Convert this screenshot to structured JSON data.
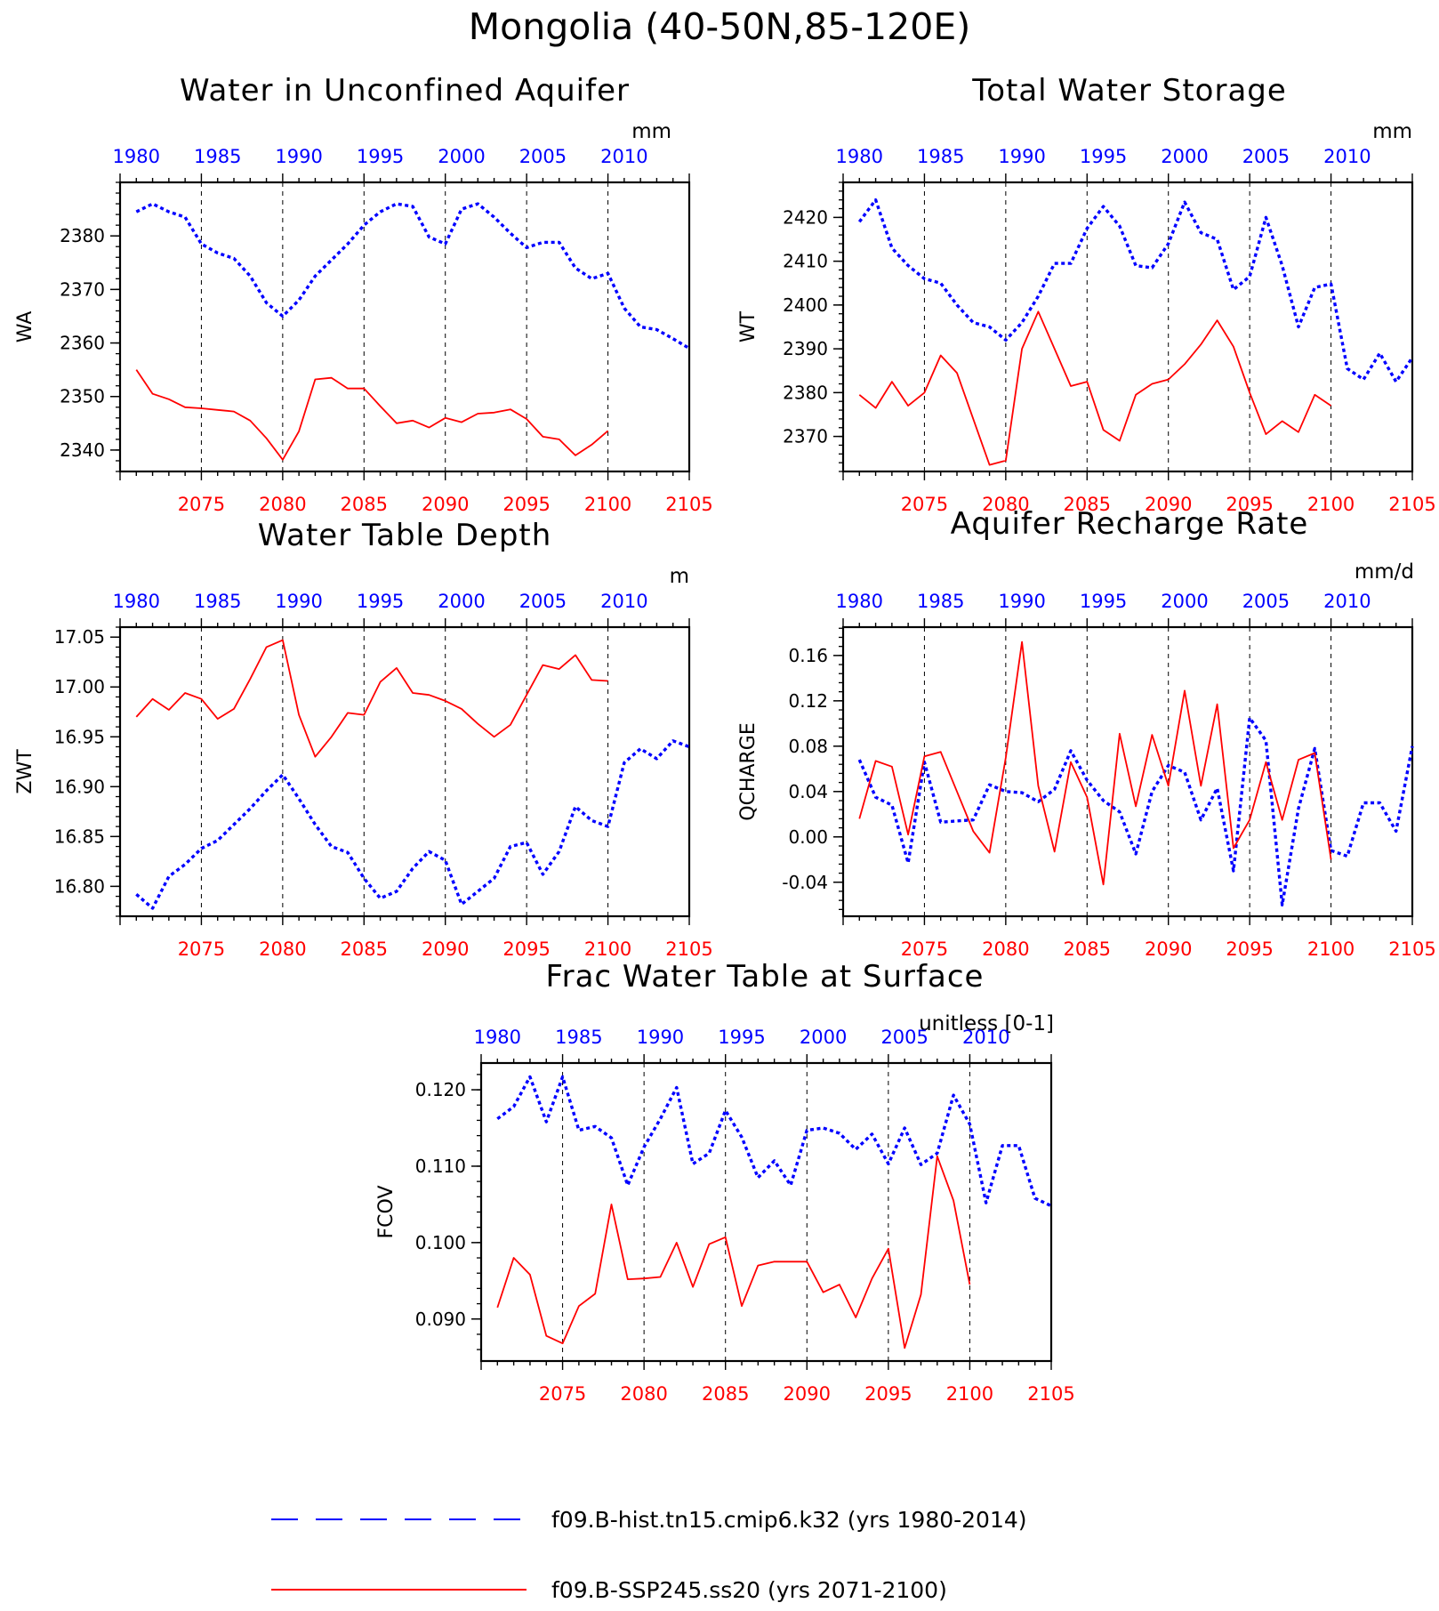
{
  "figure_title": "Mongolia (40-50N,85-120E)",
  "legend": [
    {
      "label": "f09.B-hist.tn15.cmip6.k32 (yrs 1980-2014)",
      "color": "#0000ff",
      "style": "dashed"
    },
    {
      "label": "f09.B-SSP245.ss20 (yrs 2071-2100)",
      "color": "#ff0000",
      "style": "solid"
    }
  ],
  "colors": {
    "historical": "#0000ff",
    "future": "#ff0000",
    "axis": "#000000"
  },
  "chart_data": [
    {
      "type": "line",
      "title": "Water in Unconfined Aquifer",
      "ylabel": "WA",
      "unit": "mm",
      "ylim": [
        2336,
        2390
      ],
      "yticks": [
        2340,
        2350,
        2360,
        2370,
        2380
      ],
      "ytick_labels": [
        "2340",
        "2350",
        "2360",
        "2370",
        "2380"
      ],
      "top_xticks": [
        "1980",
        "1985",
        "1990",
        "1995",
        "2000",
        "2005",
        "2010"
      ],
      "bottom_xticks": [
        "2075",
        "2080",
        "2085",
        "2090",
        "2095",
        "2100",
        "2105"
      ],
      "series": [
        {
          "x_start": 1980,
          "values": [
            2384.5,
            2386,
            2384.5,
            2383.5,
            2378.5,
            2376.8,
            2375.8,
            2372.5,
            2367.5,
            2365,
            2368,
            2372.5,
            2375.5,
            2378.5,
            2382,
            2384.5,
            2386,
            2385.5,
            2379.8,
            2378.5,
            2385,
            2386,
            2383.5,
            2380.5,
            2377.8,
            2378.8,
            2378.8,
            2374,
            2372,
            2373,
            2366.5,
            2363,
            2362.5,
            2360.8,
            2359
          ]
        },
        {
          "x_start": 2071,
          "values": [
            2355,
            2350.5,
            2349.5,
            2348,
            2347.8,
            2347.5,
            2347.2,
            2345.5,
            2342.2,
            2338.2,
            2343.5,
            2353.2,
            2353.5,
            2351.5,
            2351.5,
            2348.2,
            2345,
            2345.5,
            2344.2,
            2346,
            2345.2,
            2346.8,
            2347,
            2347.6,
            2345.8,
            2342.5,
            2342,
            2339,
            2341,
            2343.6
          ]
        }
      ]
    },
    {
      "type": "line",
      "title": "Total Water Storage",
      "ylabel": "WT",
      "unit": "mm",
      "ylim": [
        2362,
        2428
      ],
      "yticks": [
        2370,
        2380,
        2390,
        2400,
        2410,
        2420
      ],
      "ytick_labels": [
        "2370",
        "2380",
        "2390",
        "2400",
        "2410",
        "2420"
      ],
      "top_xticks": [
        "1980",
        "1985",
        "1990",
        "1995",
        "2000",
        "2005",
        "2010"
      ],
      "bottom_xticks": [
        "2075",
        "2080",
        "2085",
        "2090",
        "2095",
        "2100",
        "2105"
      ],
      "series": [
        {
          "x_start": 1980,
          "values": [
            2419,
            2424,
            2413,
            2409,
            2406,
            2405,
            2400,
            2396,
            2395,
            2392,
            2396,
            2402,
            2409.5,
            2409.5,
            2417.5,
            2422.5,
            2418,
            2409,
            2408.5,
            2414,
            2423.5,
            2416.5,
            2415,
            2403.5,
            2406.5,
            2420,
            2409,
            2395,
            2404,
            2404.8,
            2385.5,
            2383,
            2389,
            2382.5,
            2388
          ]
        },
        {
          "x_start": 2071,
          "values": [
            2379.5,
            2376.5,
            2382.5,
            2377,
            2380,
            2388.5,
            2384.5,
            2374,
            2363.5,
            2364.5,
            2390,
            2398.5,
            2390,
            2381.5,
            2382.5,
            2371.5,
            2369,
            2379.5,
            2382,
            2383,
            2386.5,
            2391,
            2396.5,
            2390.5,
            2380,
            2370.5,
            2373.5,
            2371,
            2379.5,
            2377
          ]
        }
      ]
    },
    {
      "type": "line",
      "title": "Water Table Depth",
      "ylabel": "ZWT",
      "unit": "m",
      "ylim": [
        16.77,
        17.06
      ],
      "yticks": [
        16.8,
        16.85,
        16.9,
        16.95,
        17.0,
        17.05
      ],
      "ytick_labels": [
        "16.80",
        "16.85",
        "16.90",
        "16.95",
        "17.00",
        "17.05"
      ],
      "top_xticks": [
        "1980",
        "1985",
        "1990",
        "1995",
        "2000",
        "2005",
        "2010"
      ],
      "bottom_xticks": [
        "2075",
        "2080",
        "2085",
        "2090",
        "2095",
        "2100",
        "2105"
      ],
      "series": [
        {
          "x_start": 1980,
          "values": [
            16.792,
            16.778,
            16.81,
            16.822,
            16.838,
            16.846,
            16.862,
            16.878,
            16.896,
            16.912,
            16.888,
            16.862,
            16.84,
            16.834,
            16.808,
            16.788,
            16.795,
            16.818,
            16.835,
            16.826,
            16.782,
            16.795,
            16.808,
            16.84,
            16.844,
            16.812,
            16.835,
            16.88,
            16.866,
            16.86,
            16.924,
            16.938,
            16.928,
            16.946,
            16.94
          ]
        },
        {
          "x_start": 2071,
          "values": [
            16.97,
            16.988,
            16.977,
            16.994,
            16.988,
            16.968,
            16.978,
            17.008,
            17.04,
            17.047,
            16.972,
            16.93,
            16.95,
            16.974,
            16.972,
            17.005,
            17.019,
            16.994,
            16.992,
            16.986,
            16.978,
            16.963,
            16.95,
            16.962,
            16.992,
            17.022,
            17.018,
            17.032,
            17.007,
            17.006
          ]
        }
      ]
    },
    {
      "type": "line",
      "title": "Aquifer Recharge Rate",
      "ylabel": "QCHARGE",
      "unit": "mm/d",
      "ylim": [
        -0.07,
        0.185
      ],
      "yticks": [
        -0.04,
        0.0,
        0.04,
        0.08,
        0.12,
        0.16
      ],
      "ytick_labels": [
        "-0.04",
        "0.00",
        "0.04",
        "0.08",
        "0.12",
        "0.16"
      ],
      "top_xticks": [
        "1980",
        "1985",
        "1990",
        "1995",
        "2000",
        "2005",
        "2010"
      ],
      "bottom_xticks": [
        "2075",
        "2080",
        "2085",
        "2090",
        "2095",
        "2100",
        "2105"
      ],
      "series": [
        {
          "x_start": 1980,
          "values": [
            0.068,
            0.035,
            0.028,
            -0.023,
            0.066,
            0.013,
            0.014,
            0.015,
            0.046,
            0.04,
            0.039,
            0.031,
            0.042,
            0.076,
            0.05,
            0.032,
            0.022,
            -0.015,
            0.04,
            0.063,
            0.057,
            0.015,
            0.043,
            -0.03,
            0.105,
            0.085,
            -0.06,
            0.025,
            0.078,
            -0.012,
            -0.017,
            0.03,
            0.03,
            0.005,
            0.08
          ]
        },
        {
          "x_start": 2071,
          "values": [
            0.016,
            0.067,
            0.062,
            0.002,
            0.071,
            0.075,
            0.04,
            0.005,
            -0.014,
            0.07,
            0.172,
            0.045,
            -0.013,
            0.066,
            0.035,
            -0.042,
            0.091,
            0.027,
            0.09,
            0.045,
            0.129,
            0.045,
            0.117,
            -0.01,
            0.015,
            0.066,
            0.015,
            0.068,
            0.074,
            -0.02
          ]
        }
      ]
    },
    {
      "type": "line",
      "title": "Frac Water Table at Surface",
      "ylabel": "FCOV",
      "unit": "unitless [0-1]",
      "ylim": [
        0.0845,
        0.1235
      ],
      "yticks": [
        0.09,
        0.1,
        0.11,
        0.12
      ],
      "ytick_labels": [
        "0.090",
        "0.100",
        "0.110",
        "0.120"
      ],
      "top_xticks": [
        "1980",
        "1985",
        "1990",
        "1995",
        "2000",
        "2005",
        "2010"
      ],
      "bottom_xticks": [
        "2075",
        "2080",
        "2085",
        "2090",
        "2095",
        "2100",
        "2105"
      ],
      "series": [
        {
          "x_start": 1980,
          "values": [
            0.1162,
            0.1178,
            0.1217,
            0.1158,
            0.1217,
            0.1147,
            0.1152,
            0.1137,
            0.1075,
            0.1125,
            0.1162,
            0.1203,
            0.1103,
            0.1117,
            0.1173,
            0.1138,
            0.1085,
            0.1107,
            0.1075,
            0.1147,
            0.115,
            0.1143,
            0.1122,
            0.1142,
            0.1103,
            0.115,
            0.1102,
            0.1117,
            0.1193,
            0.1155,
            0.1052,
            0.1127,
            0.1127,
            0.1058,
            0.1048
          ]
        },
        {
          "x_start": 2071,
          "values": [
            0.0915,
            0.098,
            0.0958,
            0.0878,
            0.0868,
            0.0917,
            0.0933,
            0.105,
            0.0952,
            0.0953,
            0.0955,
            0.1,
            0.0942,
            0.0998,
            0.1007,
            0.0917,
            0.097,
            0.0975,
            0.0975,
            0.0975,
            0.0935,
            0.0945,
            0.0902,
            0.0953,
            0.0992,
            0.0862,
            0.0932,
            0.1113,
            0.1055,
            0.0945
          ]
        }
      ]
    }
  ]
}
